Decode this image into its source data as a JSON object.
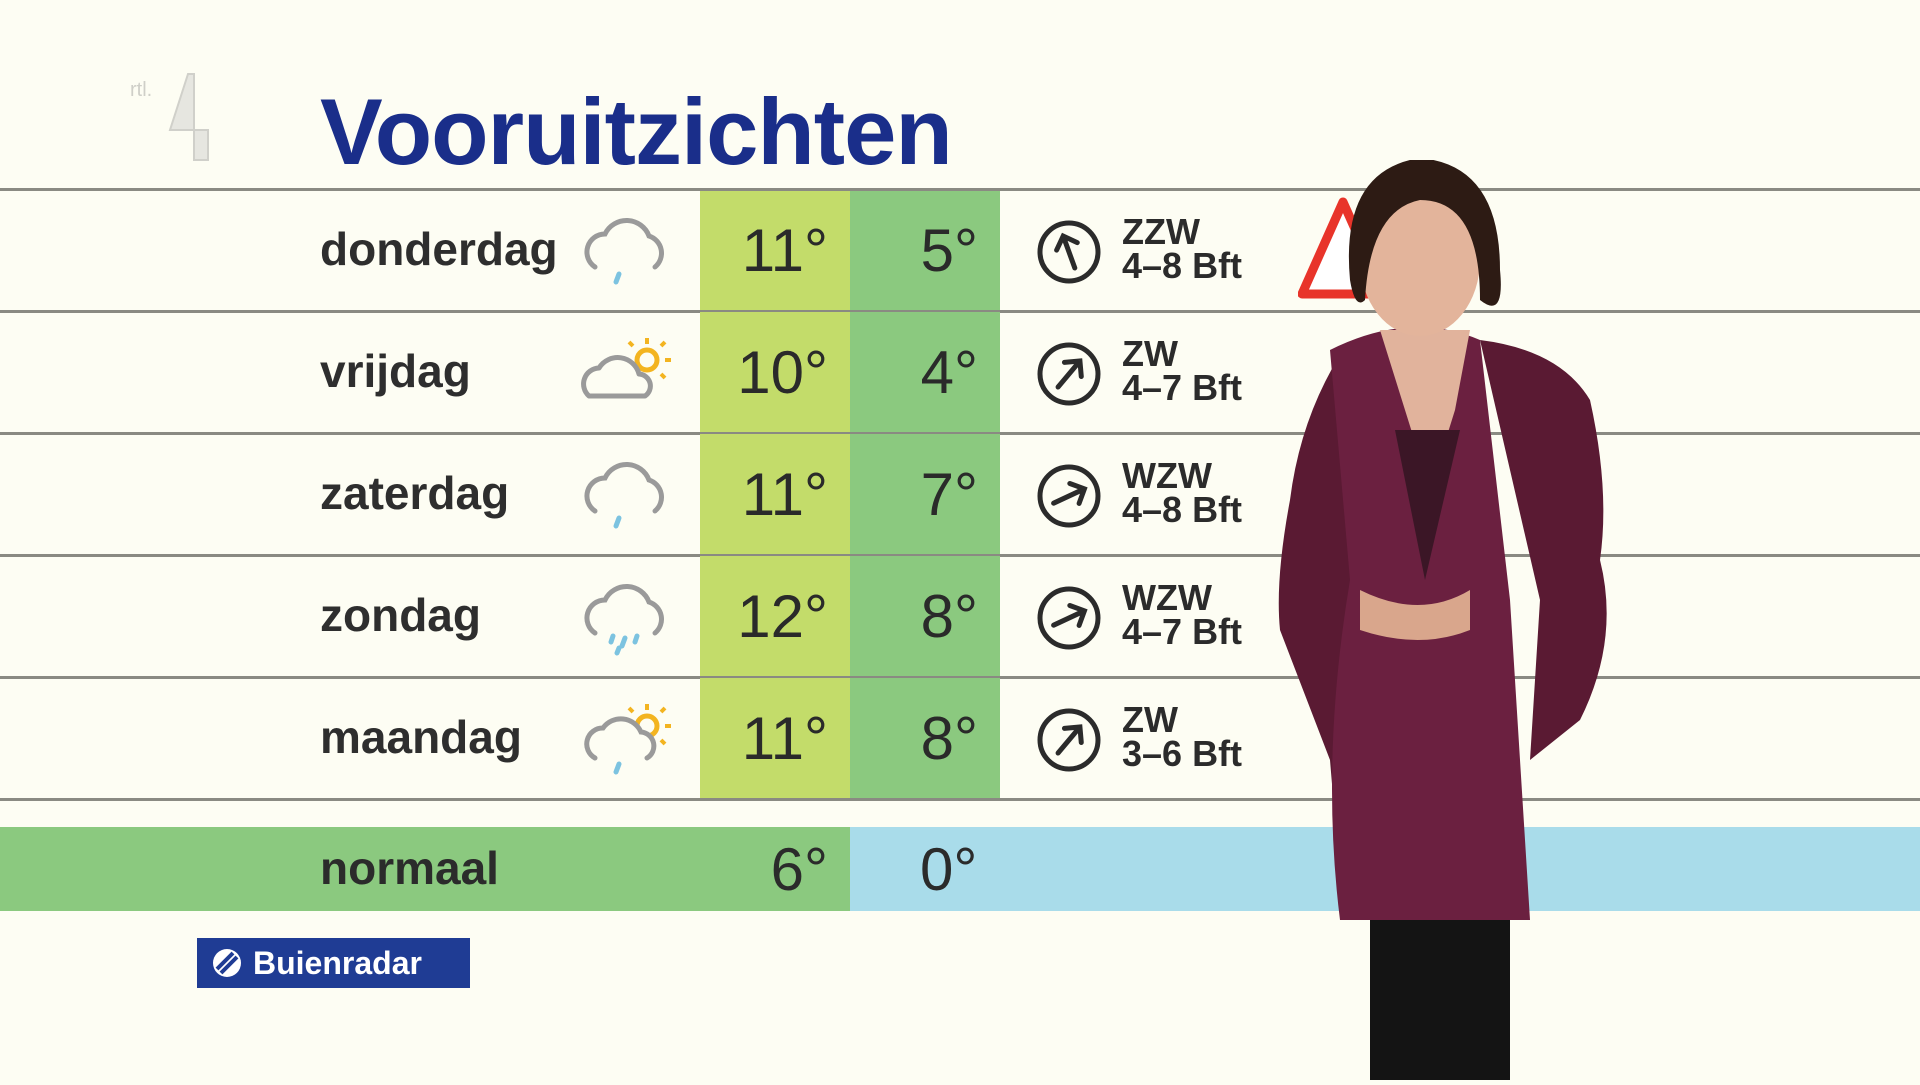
{
  "title": "Vooruitzichten",
  "logo_text": "rtl 4",
  "colors": {
    "title": "#1a2e8a",
    "max_col": "#c3dc6a",
    "min_col": "#8bc97f",
    "normal_min": "#a9dcea",
    "brand": "#1f3c94",
    "warning": "#e8342a"
  },
  "days": [
    {
      "day": "donderdag",
      "icon": "cloud-light-rain-icon",
      "max": "11°",
      "min": "5°",
      "wind_dir": "ZZW",
      "wind_speed": "4–8 Bft"
    },
    {
      "day": "vrijdag",
      "icon": "sun-behind-cloud-icon",
      "max": "10°",
      "min": "4°",
      "wind_dir": "ZW",
      "wind_speed": "4–7 Bft"
    },
    {
      "day": "zaterdag",
      "icon": "cloud-light-rain-icon",
      "max": "11°",
      "min": "7°",
      "wind_dir": "WZW",
      "wind_speed": "4–8 Bft"
    },
    {
      "day": "zondag",
      "icon": "cloud-rain-icon",
      "max": "12°",
      "min": "8°",
      "wind_dir": "WZW",
      "wind_speed": "4–7 Bft"
    },
    {
      "day": "maandag",
      "icon": "sun-cloud-rain-icon",
      "max": "11°",
      "min": "8°",
      "wind_dir": "ZW",
      "wind_speed": "3–6 Bft"
    }
  ],
  "normal": {
    "label": "normaal",
    "max": "6°",
    "min": "0°"
  },
  "brand": "Buienradar"
}
